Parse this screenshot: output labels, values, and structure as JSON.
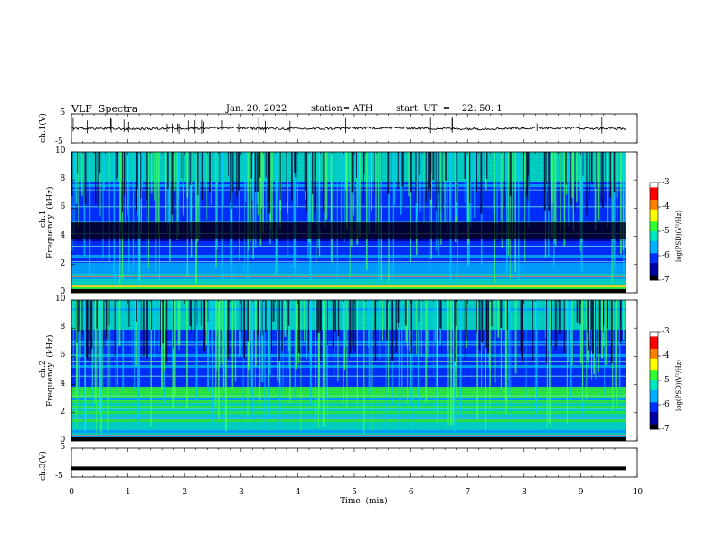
{
  "header": {
    "title": "VLF  Spectra",
    "date": "Jan. 20, 2022",
    "station": "station= ATH",
    "start": "start  UT  =    22: 50: 1"
  },
  "chart_data": {
    "type": "heatmap",
    "panels": [
      {
        "name": "ch1-waveform",
        "ylabel": "ch.1(V)",
        "ylim": [
          -5,
          5
        ],
        "yticks": [
          "5",
          "-5"
        ],
        "style": "noisy-trace"
      },
      {
        "name": "ch1-spectrogram",
        "ylabel": "Frequency  (kHz)",
        "sublabel": "ch.1",
        "ylim": [
          0,
          10
        ],
        "yticks": [
          "0",
          "2",
          "4",
          "6",
          "8",
          "10"
        ]
      },
      {
        "name": "ch2-spectrogram",
        "ylabel": "Frequency  (kHz)",
        "sublabel": "ch.2",
        "ylim": [
          0,
          10
        ],
        "yticks": [
          "0",
          "2",
          "4",
          "6",
          "8",
          "10"
        ]
      },
      {
        "name": "ch3-waveform",
        "ylabel": "ch.3(V)",
        "ylim": [
          -5,
          5
        ],
        "yticks": [
          "5",
          "-5"
        ],
        "style": "thick-flat",
        "level": -2
      }
    ],
    "xlabel": "Time  (min)",
    "xlim": [
      0,
      10
    ],
    "xticks": [
      "0",
      "1",
      "2",
      "3",
      "4",
      "5",
      "6",
      "7",
      "8",
      "9",
      "10"
    ],
    "data_end_min": 9.8,
    "colorbars": [
      {
        "label": "log(PSD)(V²/Hz)",
        "ticks": [
          "-3",
          "-4",
          "-5",
          "-6",
          "-7"
        ],
        "range": [
          -7,
          -3
        ]
      },
      {
        "label": "log(PSD)(V²/Hz)",
        "ticks": [
          "-3",
          "-4",
          "-5",
          "-6",
          "-7"
        ],
        "range": [
          -7,
          -3
        ]
      }
    ],
    "colormap": [
      "#000000",
      "#0000a0",
      "#0030ff",
      "#00b0ff",
      "#00e8c0",
      "#30ff30",
      "#ffff00",
      "#ff8000",
      "#ff0000",
      "#ffffff"
    ]
  }
}
